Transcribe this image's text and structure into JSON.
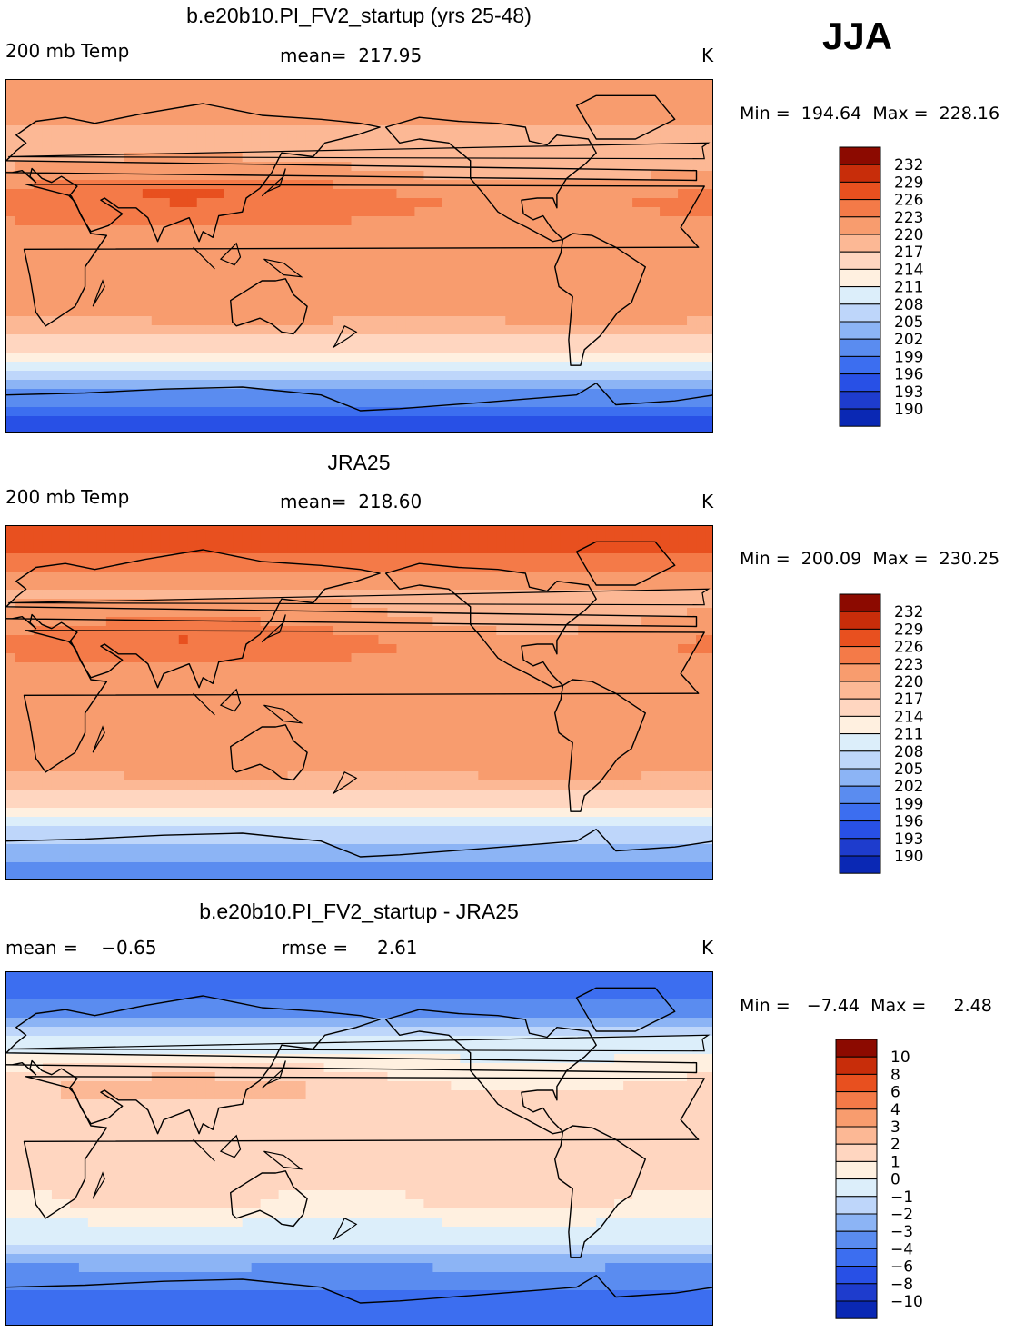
{
  "season": "JJA",
  "colors": {
    "temp_levels": [
      "#00006e",
      "#0a28b4",
      "#1e3ccd",
      "#2850e6",
      "#3c6ef0",
      "#5a8cf0",
      "#8cb4f5",
      "#bed6fa",
      "#dceefa",
      "#fff0e0",
      "#ffd6c0",
      "#fcb895",
      "#f89c6e",
      "#f47a48",
      "#e8501f",
      "#c82d0a",
      "#8c0a00"
    ],
    "diff_levels": [
      "#00006e",
      "#0a28b4",
      "#1e3ccd",
      "#2850e6",
      "#3c6ef0",
      "#5a8cf0",
      "#8cb4f5",
      "#bed6fa",
      "#dceefa",
      "#fff0e0",
      "#ffd6c0",
      "#fcb895",
      "#f89c6e",
      "#f47a48",
      "#e8501f",
      "#c82d0a",
      "#8c0a00"
    ]
  },
  "chart_data": [
    {
      "type": "heatmap",
      "title": "b.e20b10.PI_FV2_startup (yrs 25-48)",
      "variable_label": "200 mb Temp",
      "mean_label": "mean=  217.95",
      "units": "K",
      "minmax_label": "Min =  194.64  Max =  228.16",
      "min": 194.64,
      "max": 228.16,
      "mean": 217.95,
      "colorbar_levels": [
        "232",
        "229",
        "226",
        "223",
        "220",
        "217",
        "214",
        "211",
        "208",
        "205",
        "202",
        "199",
        "196",
        "193",
        "190"
      ],
      "zonal_profile": {
        "lat": [
          90,
          75,
          65,
          55,
          45,
          30,
          15,
          0,
          -15,
          -30,
          -40,
          -50,
          -55,
          -60,
          -70,
          -80,
          -90
        ],
        "temp": [
          223,
          221.5,
          220,
          219,
          220,
          224.5,
          222.5,
          221.5,
          222.5,
          221,
          217,
          214,
          211,
          207,
          201,
          196.5,
          194.6
        ]
      }
    },
    {
      "type": "heatmap",
      "title": "JRA25",
      "variable_label": "200 mb Temp",
      "mean_label": "mean=  218.60",
      "units": "K",
      "minmax_label": "Min =  200.09  Max =  230.25",
      "min": 200.09,
      "max": 230.25,
      "mean": 218.6,
      "colorbar_levels": [
        "232",
        "229",
        "226",
        "223",
        "220",
        "217",
        "214",
        "211",
        "208",
        "205",
        "202",
        "199",
        "196",
        "193",
        "190"
      ],
      "zonal_profile": {
        "lat": [
          90,
          75,
          65,
          55,
          45,
          30,
          15,
          0,
          -15,
          -30,
          -40,
          -50,
          -55,
          -60,
          -70,
          -80,
          -90
        ],
        "temp": [
          228,
          225.5,
          222,
          219.5,
          220.5,
          224,
          221.5,
          220.5,
          221.5,
          222,
          219,
          215,
          212,
          209,
          205,
          202,
          200.1
        ]
      }
    },
    {
      "type": "heatmap",
      "title": "b.e20b10.PI_FV2_startup - JRA25",
      "mean_label": "mean =    −0.65",
      "rmse_label": "rmse =     2.61",
      "units": "K",
      "minmax_label": "Min =   −7.44  Max =     2.48",
      "min": -7.44,
      "max": 2.48,
      "mean": -0.65,
      "rmse": 2.61,
      "colorbar_levels": [
        "10",
        "8",
        "6",
        "4",
        "3",
        "2",
        "1",
        "0",
        "−1",
        "−2",
        "−3",
        "−4",
        "−6",
        "−8",
        "−10"
      ],
      "zonal_profile": {
        "lat": [
          90,
          75,
          65,
          55,
          45,
          30,
          15,
          0,
          -15,
          -30,
          -40,
          -50,
          -55,
          -60,
          -70,
          -80,
          -90
        ],
        "diff": [
          -5,
          -4,
          -3,
          -0.8,
          0.5,
          1.8,
          1.2,
          1.2,
          1.2,
          1.0,
          -0.5,
          -1.2,
          -2,
          -3,
          -4,
          -5,
          -5.5
        ]
      }
    }
  ]
}
